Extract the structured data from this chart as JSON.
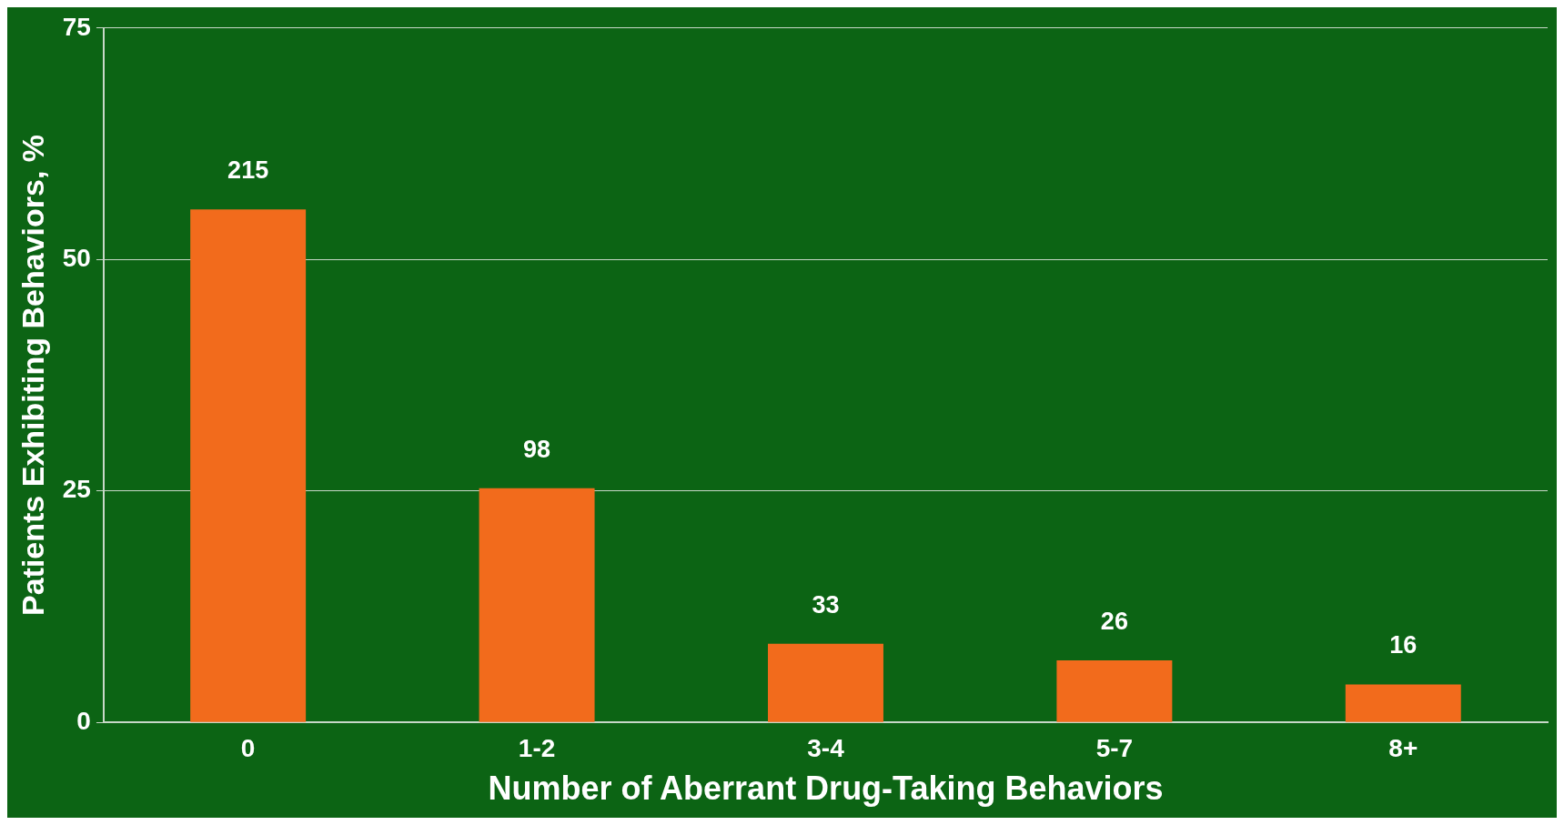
{
  "chart_data": {
    "type": "bar",
    "xlabel": "Number of Aberrant Drug-Taking Behaviors",
    "ylabel": "Patients Exhibiting Behaviors, %",
    "categories": [
      "0",
      "1-2",
      "3-4",
      "5-7",
      "8+"
    ],
    "values": [
      55.4,
      25.3,
      8.5,
      6.7,
      4.1
    ],
    "annotations": [
      {
        "text": "215",
        "x": "0",
        "y": 55.4
      },
      {
        "text": "98",
        "x": "1-2",
        "y": 25.3
      },
      {
        "text": "33",
        "x": "3-4",
        "y": 8.5
      },
      {
        "text": "26",
        "x": "5-7",
        "y": 6.7
      },
      {
        "text": "16",
        "x": "8+",
        "y": 4.1
      }
    ],
    "color": "#f26b1c",
    "ylim": [
      0,
      75
    ],
    "yticks": [
      0,
      25,
      50,
      75
    ],
    "grid": "y",
    "legend": false
  }
}
